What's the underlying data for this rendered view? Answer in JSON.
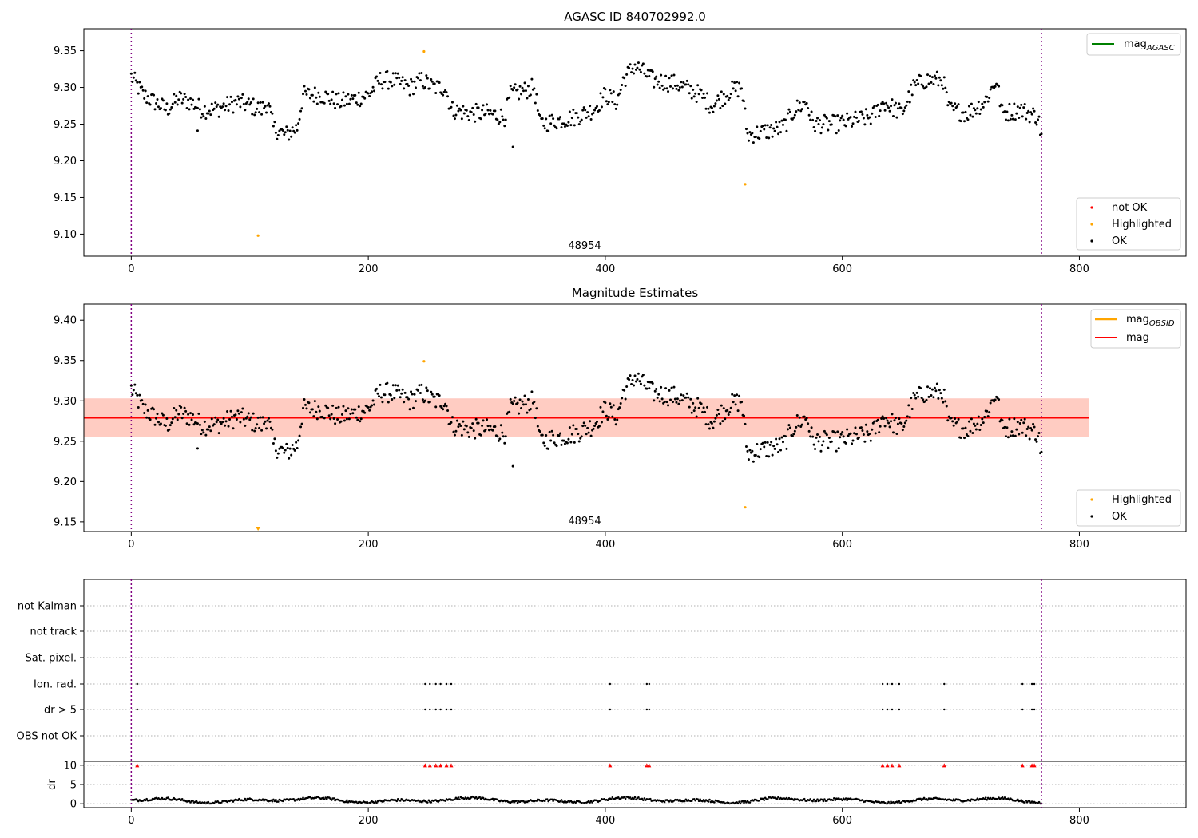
{
  "figure": {
    "panel1_title": "AGASC ID 840702992.0",
    "panel2_title": "Magnitude Estimates",
    "obsid_label": "48954",
    "colors": {
      "ok": "#000000",
      "highlighted": "#ffa500",
      "not_ok": "#ff0000",
      "agasc_line": "#008000",
      "obsid_line": "#ffa500",
      "mag_line": "#ff0000",
      "band_pink": "#ffc0cb",
      "band_orange": "#ffa07a",
      "vline": "#800080"
    }
  },
  "chart_data": [
    {
      "type": "scatter",
      "title": "AGASC ID 840702992.0",
      "xlim": [
        -40,
        890
      ],
      "ylim": [
        9.07,
        9.38
      ],
      "xticks": [
        0,
        200,
        400,
        600,
        800
      ],
      "yticks": [
        9.1,
        9.15,
        9.2,
        9.25,
        9.3,
        9.35
      ],
      "ytick_labels": [
        "9.10",
        "9.15",
        "9.20",
        "9.25",
        "9.30",
        "9.35"
      ],
      "vlines": [
        0,
        768
      ],
      "legend_upper": {
        "position": "top-right",
        "entries": [
          {
            "label": "mag",
            "sub": "AGASC",
            "color": "#008000",
            "kind": "line"
          }
        ]
      },
      "legend_lower": {
        "position": "bottom-right",
        "entries": [
          {
            "label": "not OK",
            "color": "#ff0000",
            "kind": "dot"
          },
          {
            "label": "Highlighted",
            "color": "#ffa500",
            "kind": "dot"
          },
          {
            "label": "OK",
            "color": "#000000",
            "kind": "dot"
          }
        ]
      },
      "annotation": "48954",
      "highlighted_points": [
        {
          "x": 107,
          "y": 9.098
        },
        {
          "x": 247,
          "y": 9.349
        },
        {
          "x": 518,
          "y": 9.168
        }
      ],
      "ok_series_trend": [
        [
          0,
          9.315
        ],
        [
          10,
          9.29
        ],
        [
          20,
          9.28
        ],
        [
          30,
          9.27
        ],
        [
          40,
          9.285
        ],
        [
          50,
          9.28
        ],
        [
          60,
          9.27
        ],
        [
          70,
          9.27
        ],
        [
          80,
          9.275
        ],
        [
          90,
          9.28
        ],
        [
          100,
          9.275
        ],
        [
          110,
          9.27
        ],
        [
          115,
          9.28
        ],
        [
          120,
          9.245
        ],
        [
          130,
          9.235
        ],
        [
          140,
          9.245
        ],
        [
          145,
          9.29
        ],
        [
          160,
          9.29
        ],
        [
          175,
          9.28
        ],
        [
          190,
          9.285
        ],
        [
          200,
          9.29
        ],
        [
          210,
          9.31
        ],
        [
          220,
          9.31
        ],
        [
          235,
          9.3
        ],
        [
          245,
          9.31
        ],
        [
          255,
          9.3
        ],
        [
          265,
          9.3
        ],
        [
          270,
          9.27
        ],
        [
          285,
          9.265
        ],
        [
          300,
          9.265
        ],
        [
          315,
          9.26
        ],
        [
          320,
          9.29
        ],
        [
          330,
          9.295
        ],
        [
          340,
          9.3
        ],
        [
          345,
          9.25
        ],
        [
          360,
          9.255
        ],
        [
          375,
          9.26
        ],
        [
          390,
          9.27
        ],
        [
          400,
          9.29
        ],
        [
          410,
          9.28
        ],
        [
          415,
          9.31
        ],
        [
          425,
          9.33
        ],
        [
          440,
          9.31
        ],
        [
          460,
          9.305
        ],
        [
          480,
          9.29
        ],
        [
          490,
          9.275
        ],
        [
          505,
          9.295
        ],
        [
          515,
          9.3
        ],
        [
          520,
          9.235
        ],
        [
          535,
          9.24
        ],
        [
          550,
          9.245
        ],
        [
          560,
          9.27
        ],
        [
          570,
          9.28
        ],
        [
          575,
          9.25
        ],
        [
          595,
          9.25
        ],
        [
          610,
          9.255
        ],
        [
          625,
          9.26
        ],
        [
          635,
          9.28
        ],
        [
          650,
          9.265
        ],
        [
          660,
          9.3
        ],
        [
          670,
          9.31
        ],
        [
          685,
          9.31
        ],
        [
          690,
          9.27
        ],
        [
          705,
          9.265
        ],
        [
          720,
          9.28
        ],
        [
          730,
          9.31
        ],
        [
          735,
          9.265
        ],
        [
          750,
          9.27
        ],
        [
          765,
          9.26
        ],
        [
          768,
          9.235
        ]
      ]
    },
    {
      "type": "scatter",
      "title": "Magnitude Estimates",
      "xlim": [
        -40,
        890
      ],
      "ylim": [
        9.138,
        9.42
      ],
      "xticks": [
        0,
        200,
        400,
        600,
        800
      ],
      "yticks": [
        9.15,
        9.2,
        9.25,
        9.3,
        9.35,
        9.4
      ],
      "ytick_labels": [
        "9.15",
        "9.20",
        "9.25",
        "9.30",
        "9.35",
        "9.40"
      ],
      "vlines": [
        0,
        768
      ],
      "mag_line": 9.279,
      "mag_obsid_line": 9.279,
      "band_pink": [
        9.255,
        9.303
      ],
      "band_orange": [
        9.255,
        9.303
      ],
      "band_x": [
        -40,
        808
      ],
      "legend_upper": {
        "position": "top-right",
        "entries": [
          {
            "label": "mag",
            "sub": "OBSID",
            "color": "#ffa500",
            "kind": "line"
          },
          {
            "label": "mag",
            "sub": "",
            "color": "#ff0000",
            "kind": "line"
          }
        ]
      },
      "legend_lower": {
        "position": "bottom-right",
        "entries": [
          {
            "label": "Highlighted",
            "color": "#ffa500",
            "kind": "dot"
          },
          {
            "label": "OK",
            "color": "#000000",
            "kind": "dot"
          }
        ]
      },
      "annotation": "48954",
      "highlighted_points": [
        {
          "x": 247,
          "y": 9.349
        },
        {
          "x": 518,
          "y": 9.168
        }
      ],
      "off_scale_marker": {
        "x": 107,
        "y": 9.141
      }
    },
    {
      "type": "scatter",
      "xlim": [
        -40,
        890
      ],
      "categories": [
        "not Kalman",
        "not track",
        "Sat. pixel.",
        "Ion. rad.",
        "dr > 5",
        "OBS not OK"
      ],
      "flag_points": {
        "Ion. rad.": [
          5,
          248,
          252,
          257,
          261,
          266,
          270,
          404,
          435,
          437,
          634,
          638,
          642,
          648,
          686,
          752,
          760,
          762
        ],
        "dr > 5": [
          5,
          248,
          252,
          257,
          261,
          266,
          270,
          404,
          435,
          437,
          634,
          638,
          642,
          648,
          686,
          752,
          760,
          762
        ]
      },
      "dr_ylabel": "dr",
      "dr_yticks": [
        0,
        5,
        10
      ],
      "dr_ylim": [
        -1,
        11
      ],
      "dr_flag_level": 10,
      "xticks": [
        0,
        200,
        400,
        600,
        800
      ],
      "vlines": [
        0,
        768
      ]
    }
  ]
}
